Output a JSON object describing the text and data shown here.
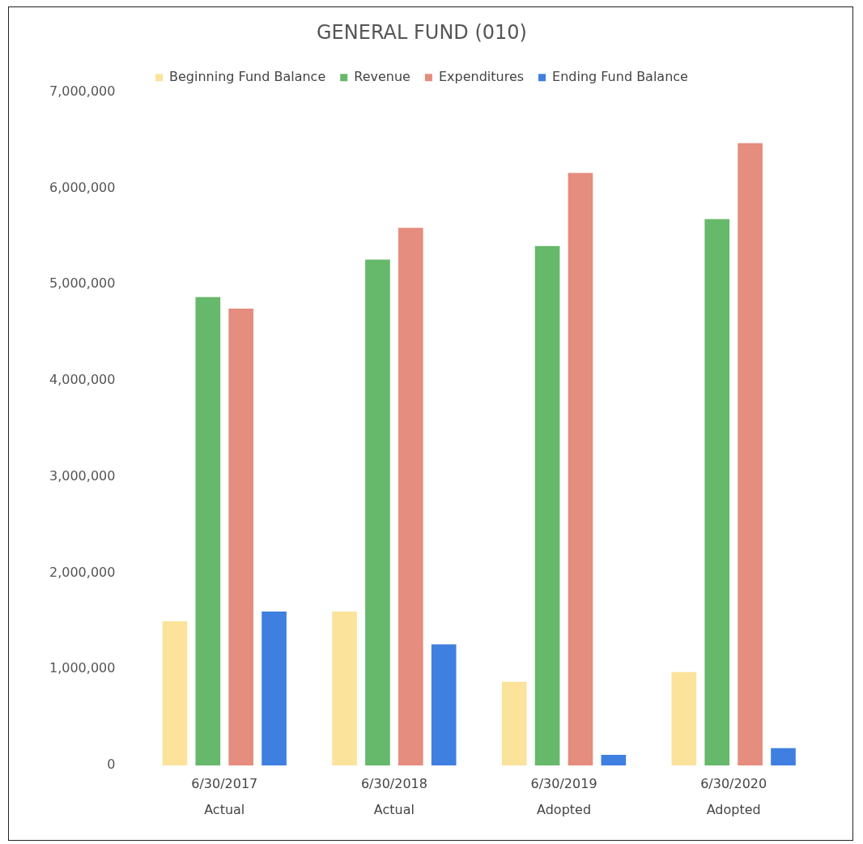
{
  "chart_data": {
    "type": "bar",
    "title": "GENERAL FUND (010)",
    "categories": [
      "6/30/2017\nActual",
      "6/30/2018\nActual",
      "6/30/2019\nAdopted",
      "6/30/2020\nAdopted"
    ],
    "series": [
      {
        "name": "Beginning Fund Balance",
        "color": "#fbe39c",
        "values": [
          1500000,
          1600000,
          870000,
          970000
        ]
      },
      {
        "name": "Revenue",
        "color": "#66b86a",
        "values": [
          4870000,
          5260000,
          5400000,
          5680000
        ]
      },
      {
        "name": "Expenditures",
        "color": "#e58d7e",
        "values": [
          4750000,
          5590000,
          6160000,
          6470000
        ]
      },
      {
        "name": "Ending Fund Balance",
        "color": "#3f7fe0",
        "values": [
          1600000,
          1260000,
          110000,
          180000
        ]
      }
    ],
    "ylim": [
      0,
      7000000
    ],
    "yticks": [
      0,
      {
        "value": 1000000,
        "label": "1,000,000"
      },
      {
        "value": 2000000,
        "label": "2,000,000"
      },
      {
        "value": 3000000,
        "label": "3,000,000"
      },
      {
        "value": 4000000,
        "label": "4,000,000"
      },
      {
        "value": 5000000,
        "label": "5,000,000"
      },
      {
        "value": 6000000,
        "label": "6,000,000"
      },
      {
        "value": 7000000,
        "label": "7,000,000"
      }
    ],
    "grid": false,
    "legend": "top"
  }
}
